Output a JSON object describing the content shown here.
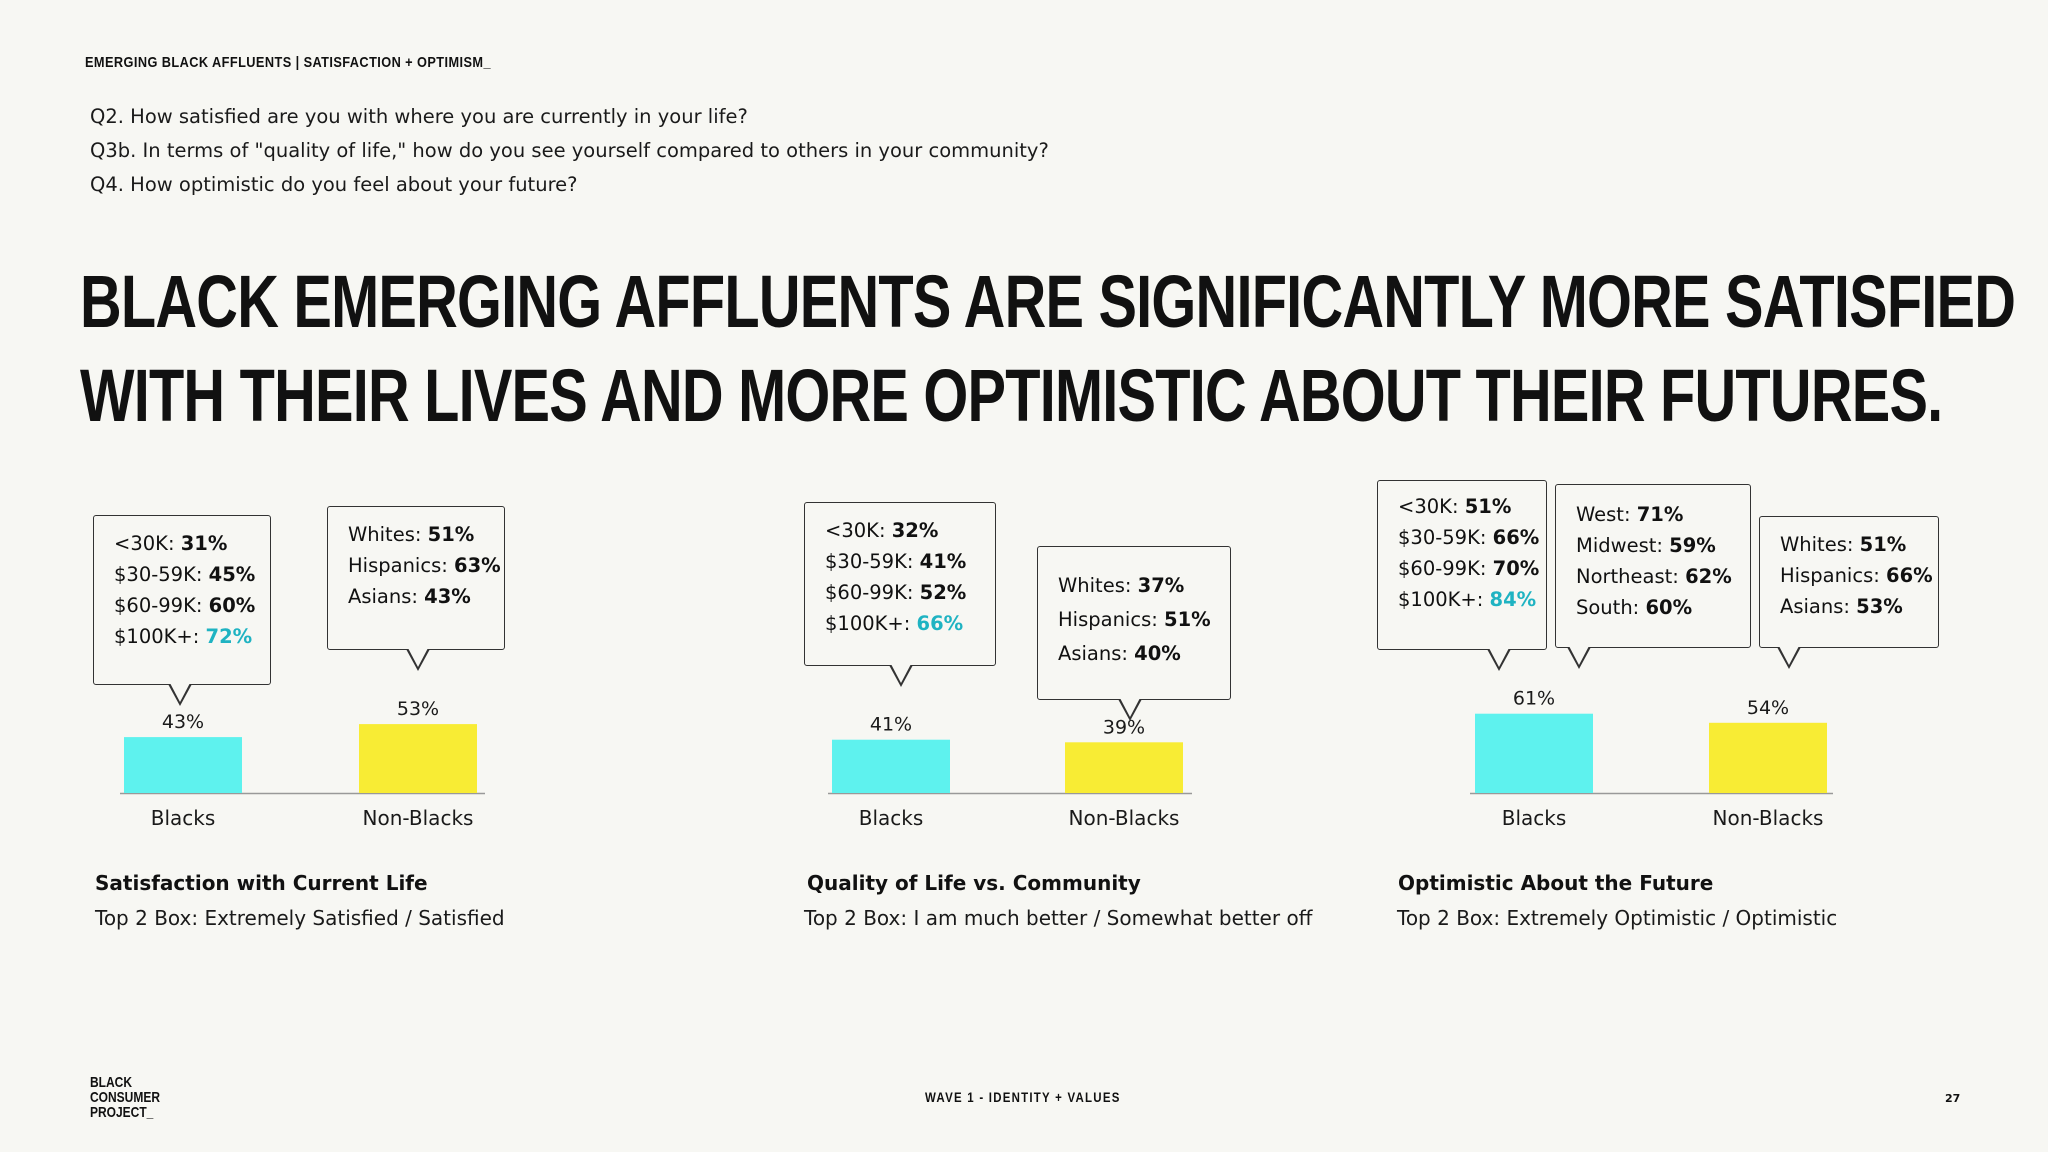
{
  "header": {
    "eyebrow": "EMERGING BLACK AFFLUENTS | SATISFACTION + OPTIMISM_",
    "questions": [
      "Q2. How satisfied are you with where you are currently in your life?",
      "Q3b. In terms of \"quality of life,\" how do you see yourself compared to others in your community?",
      "Q4. How optimistic do you feel about your future?"
    ],
    "headline_line1": "BLACK EMERGING AFFLUENTS ARE SIGNIFICANTLY MORE SATISFIED",
    "headline_line2": "WITH THEIR LIVES AND MORE OPTIMISTIC ABOUT THEIR FUTURES."
  },
  "colors": {
    "blacks": "#5ef2ee",
    "nonblacks": "#f8ec34",
    "highlight": "#1fb3c2",
    "axis": "#999999"
  },
  "chart_data": [
    {
      "type": "bar",
      "title": "Satisfaction with Current Life",
      "subtitle": "Top 2 Box: Extremely Satisfied / Satisfied",
      "categories": [
        "Blacks",
        "Non-Blacks"
      ],
      "values": [
        43,
        53
      ],
      "value_labels": [
        "43%",
        "53%"
      ],
      "callouts": [
        {
          "rows": [
            [
              "<30K: ",
              "31%"
            ],
            [
              "$30-59K: ",
              "45%"
            ],
            [
              "$60-99K: ",
              "60%"
            ],
            [
              "$100K+: ",
              "72%"
            ]
          ],
          "highlight_last": true
        },
        {
          "rows": [
            [
              "Whites: ",
              "51%"
            ],
            [
              "Hispanics: ",
              "63%"
            ],
            [
              "Asians: ",
              "43%"
            ]
          ],
          "highlight_last": false
        }
      ]
    },
    {
      "type": "bar",
      "title": "Quality of Life vs. Community",
      "subtitle": "Top 2 Box: I am much better  / Somewhat better off",
      "categories": [
        "Blacks",
        "Non-Blacks"
      ],
      "values": [
        41,
        39
      ],
      "value_labels": [
        "41%",
        "39%"
      ],
      "callouts": [
        {
          "rows": [
            [
              "<30K: ",
              "32%"
            ],
            [
              "$30-59K: ",
              "41%"
            ],
            [
              "$60-99K: ",
              "52%"
            ],
            [
              "$100K+: ",
              "66%"
            ]
          ],
          "highlight_last": true
        },
        {
          "rows": [
            [
              "Whites: ",
              "37%"
            ],
            [
              "Hispanics: ",
              "51%"
            ],
            [
              "Asians: ",
              "40%"
            ]
          ],
          "highlight_last": false
        }
      ]
    },
    {
      "type": "bar",
      "title": "Optimistic About the Future",
      "subtitle": "Top 2 Box: Extremely Optimistic / Optimistic",
      "categories": [
        "Blacks",
        "Non-Blacks"
      ],
      "values": [
        61,
        54
      ],
      "value_labels": [
        "61%",
        "54%"
      ],
      "callouts": [
        {
          "rows": [
            [
              "<30K: ",
              "51%"
            ],
            [
              "$30-59K: ",
              "66%"
            ],
            [
              "$60-99K: ",
              "70%"
            ],
            [
              "$100K+: ",
              "84%"
            ]
          ],
          "highlight_last": true
        },
        {
          "rows": [
            [
              "West: ",
              "71%"
            ],
            [
              "Midwest: ",
              "59%"
            ],
            [
              "Northeast: ",
              "62%"
            ],
            [
              "South: ",
              "60%"
            ]
          ],
          "highlight_last": false
        },
        {
          "rows": [
            [
              "Whites: ",
              "51%"
            ],
            [
              "Hispanics: ",
              "66%"
            ],
            [
              "Asians: ",
              "53%"
            ]
          ],
          "highlight_last": false
        }
      ]
    }
  ],
  "footer": {
    "logo_lines": [
      "BLACK",
      "CONSUMER",
      "PROJECT_"
    ],
    "center": "WAVE 1 - IDENTITY + VALUES",
    "page": "27"
  }
}
